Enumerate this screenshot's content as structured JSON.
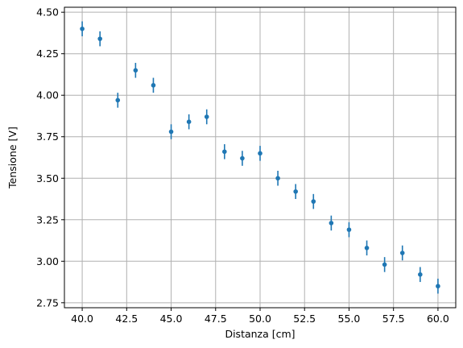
{
  "chart_data": {
    "type": "scatter",
    "title": "",
    "xlabel": "Distanza [cm]",
    "ylabel": "Tensione [V]",
    "xlim": [
      39.0,
      61.0
    ],
    "ylim": [
      2.72,
      4.53
    ],
    "grid": true,
    "legend": "none",
    "marker_color": "#1f77b4",
    "error_bar_color": "#1f77b4",
    "x_ticks": [
      40.0,
      42.5,
      45.0,
      47.5,
      50.0,
      52.5,
      55.0,
      57.5,
      60.0
    ],
    "x_tick_labels": [
      "40.0",
      "42.5",
      "45.0",
      "47.5",
      "50.0",
      "52.5",
      "55.0",
      "57.5",
      "60.0"
    ],
    "y_ticks": [
      2.75,
      3.0,
      3.25,
      3.5,
      3.75,
      4.0,
      4.25,
      4.5
    ],
    "y_tick_labels": [
      "2.75",
      "3.00",
      "3.25",
      "3.50",
      "3.75",
      "4.00",
      "4.25",
      "4.50"
    ],
    "points": [
      {
        "x": 40,
        "y": 4.4,
        "err": 0.045
      },
      {
        "x": 41,
        "y": 4.34,
        "err": 0.045
      },
      {
        "x": 42,
        "y": 3.97,
        "err": 0.045
      },
      {
        "x": 43,
        "y": 4.15,
        "err": 0.045
      },
      {
        "x": 44,
        "y": 4.06,
        "err": 0.045
      },
      {
        "x": 45,
        "y": 3.78,
        "err": 0.045
      },
      {
        "x": 46,
        "y": 3.84,
        "err": 0.045
      },
      {
        "x": 47,
        "y": 3.87,
        "err": 0.045
      },
      {
        "x": 48,
        "y": 3.66,
        "err": 0.045
      },
      {
        "x": 49,
        "y": 3.62,
        "err": 0.045
      },
      {
        "x": 50,
        "y": 3.65,
        "err": 0.045
      },
      {
        "x": 51,
        "y": 3.5,
        "err": 0.045
      },
      {
        "x": 52,
        "y": 3.42,
        "err": 0.045
      },
      {
        "x": 53,
        "y": 3.36,
        "err": 0.045
      },
      {
        "x": 54,
        "y": 3.23,
        "err": 0.045
      },
      {
        "x": 55,
        "y": 3.19,
        "err": 0.045
      },
      {
        "x": 56,
        "y": 3.08,
        "err": 0.045
      },
      {
        "x": 57,
        "y": 2.98,
        "err": 0.045
      },
      {
        "x": 58,
        "y": 3.05,
        "err": 0.045
      },
      {
        "x": 59,
        "y": 2.92,
        "err": 0.045
      },
      {
        "x": 60,
        "y": 2.85,
        "err": 0.045
      }
    ]
  }
}
